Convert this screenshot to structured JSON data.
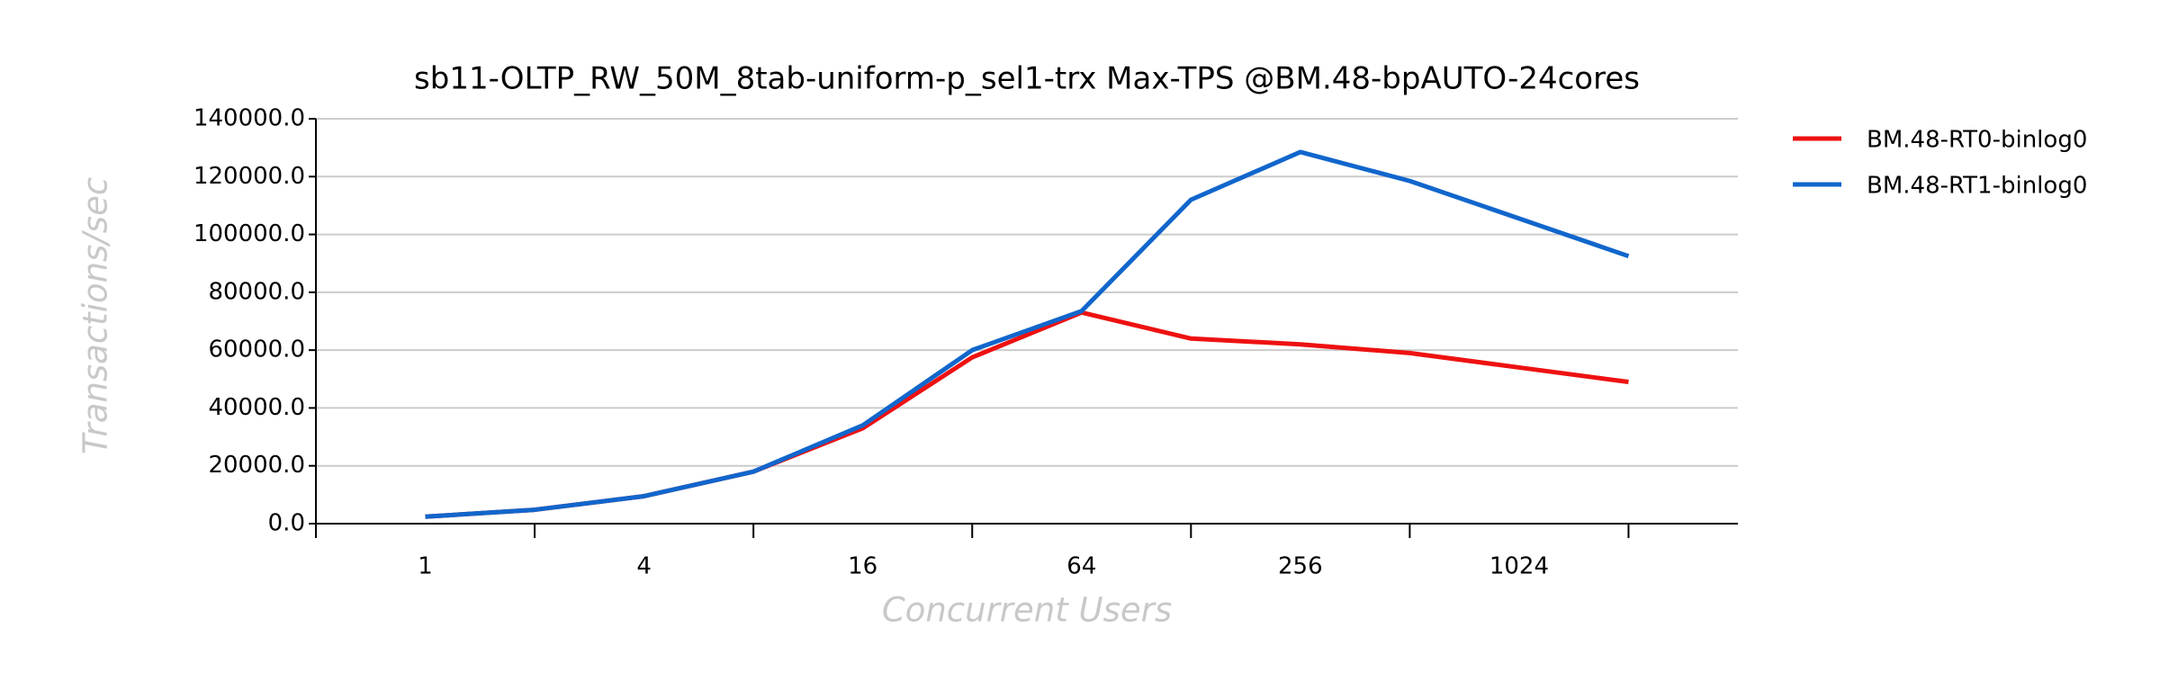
{
  "chart_data": {
    "type": "line",
    "title": "sb11-OLTP_RW_50M_8tab-uniform-p_sel1-trx Max-TPS @BM.48-bpAUTO-24cores",
    "x_label": "Concurrent Users",
    "y_label": "Transactions/sec",
    "categories": [
      "1",
      null,
      "4",
      null,
      "16",
      null,
      "64",
      null,
      "256",
      null,
      "1024",
      null
    ],
    "series": [
      {
        "name": "BM.48-RT0-binlog0",
        "color": "#ee1111",
        "values": [
          2400,
          4800,
          9500,
          18000,
          33000,
          57500,
          73000,
          64000,
          62000,
          59000,
          54000,
          49000
        ]
      },
      {
        "name": "BM.48-RT1-binlog0",
        "color": "#1166cc",
        "values": [
          2400,
          4800,
          9500,
          18000,
          34000,
          60000,
          73500,
          112000,
          128500,
          118500,
          105500,
          92500
        ]
      }
    ],
    "ylim": [
      0,
      140000
    ],
    "yticks": [
      {
        "value": 0,
        "label": "0.0"
      },
      {
        "value": 20000,
        "label": "20000.0"
      },
      {
        "value": 40000,
        "label": "40000.0"
      },
      {
        "value": 60000,
        "label": "60000.0"
      },
      {
        "value": 80000,
        "label": "80000.0"
      },
      {
        "value": 100000,
        "label": "100000.0"
      },
      {
        "value": 120000,
        "label": "120000.0"
      },
      {
        "value": 140000,
        "label": "140000.0"
      }
    ],
    "grid": true,
    "legend": "right"
  }
}
